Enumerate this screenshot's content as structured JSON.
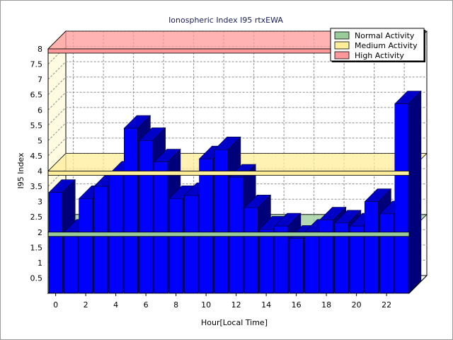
{
  "chart_data": {
    "type": "bar",
    "title": "Ionospheric Index I95 rtxEWA",
    "xlabel": "Hour[Local Time]",
    "ylabel": "I95 Index",
    "x": [
      0,
      1,
      2,
      3,
      4,
      5,
      6,
      7,
      8,
      9,
      10,
      11,
      12,
      13,
      14,
      15,
      16,
      17,
      18,
      19,
      20,
      21,
      22,
      23
    ],
    "xticks": [
      "0",
      "2",
      "4",
      "6",
      "8",
      "10",
      "12",
      "14",
      "16",
      "18",
      "20",
      "22"
    ],
    "yticks": [
      "0.5",
      "1",
      "1.5",
      "2",
      "2.5",
      "3",
      "3.5",
      "4",
      "4.5",
      "5",
      "5.5",
      "6",
      "6.5",
      "7",
      "7.5",
      "8"
    ],
    "ylim": [
      0,
      8
    ],
    "values": [
      3.3,
      2.0,
      3.1,
      3.5,
      3.9,
      5.4,
      5.0,
      4.3,
      3.1,
      3.2,
      4.4,
      4.7,
      3.8,
      2.8,
      2.1,
      2.2,
      1.8,
      2.0,
      2.4,
      2.3,
      2.2,
      3.0,
      2.6,
      6.2
    ],
    "bar_color": "#0000ff",
    "bands": [
      {
        "name": "Normal Activity",
        "y": 2.0,
        "color": "#99cc99"
      },
      {
        "name": "Medium Activity",
        "y": 4.0,
        "color": "#ffee99"
      },
      {
        "name": "High Activity",
        "y": 8.0,
        "color": "#ff9999"
      }
    ],
    "grid": true,
    "legend_position": "top-right",
    "style": "3d"
  }
}
